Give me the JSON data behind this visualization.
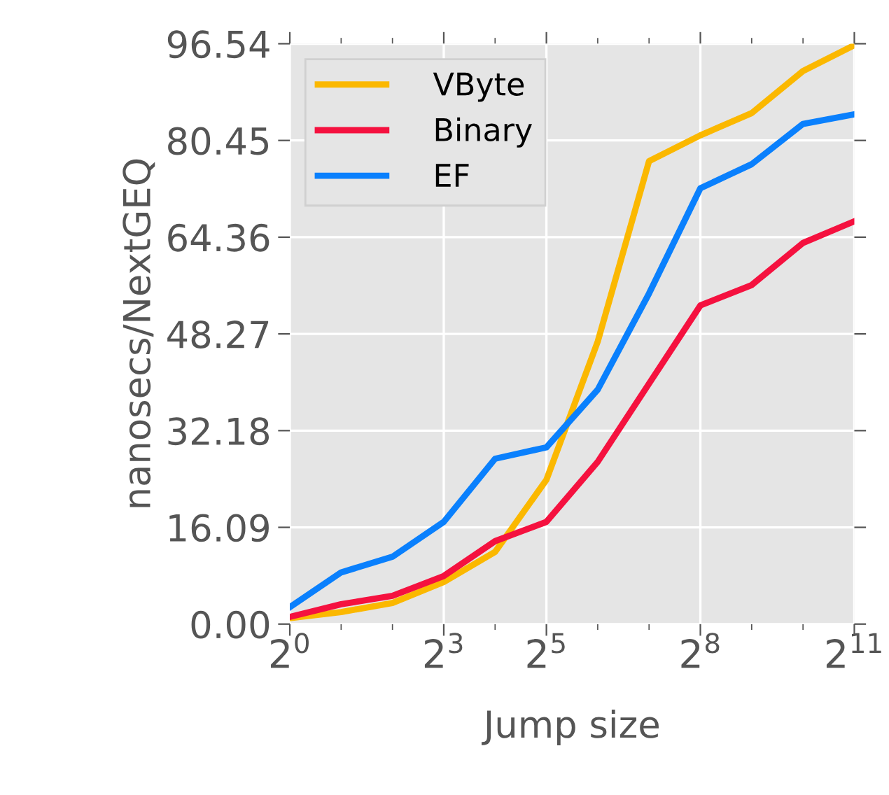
{
  "chart_data": {
    "type": "line",
    "xlabel": "Jump size",
    "ylabel": "nanosecs/NextGEQ",
    "x": [
      1,
      2,
      4,
      8,
      16,
      32,
      64,
      128,
      256,
      512,
      1024,
      2048
    ],
    "series": [
      {
        "name": "VByte",
        "color": "#fbb800",
        "values": [
          1.0,
          2.0,
          3.5,
          7.0,
          12.0,
          24.0,
          47.0,
          77.0,
          81.3,
          85.0,
          92.0,
          96.3
        ]
      },
      {
        "name": "Binary",
        "color": "#f5113f",
        "values": [
          1.2,
          3.3,
          4.7,
          8.0,
          13.8,
          17.0,
          27.0,
          40.0,
          53.0,
          56.4,
          63.4,
          67.0
        ]
      },
      {
        "name": "EF",
        "color": "#0a80fd",
        "values": [
          2.8,
          8.6,
          11.2,
          17.0,
          27.5,
          29.4,
          39.0,
          55.0,
          72.5,
          76.5,
          83.2,
          84.8
        ]
      }
    ],
    "log": "x",
    "xlim": [
      1,
      2048
    ],
    "ylim": [
      0,
      96.54
    ],
    "xticks": [
      {
        "value": 1,
        "label": "2$^{0}$"
      },
      {
        "value": 2,
        "label": null
      },
      {
        "value": 4,
        "label": null
      },
      {
        "value": 8,
        "label": "2$^{3}$"
      },
      {
        "value": 16,
        "label": null
      },
      {
        "value": 32,
        "label": "2$^{5}$"
      },
      {
        "value": 64,
        "label": null
      },
      {
        "value": 128,
        "label": null
      },
      {
        "value": 256,
        "label": "2$^{8}$"
      },
      {
        "value": 512,
        "label": null
      },
      {
        "value": 1024,
        "label": null
      },
      {
        "value": 2048,
        "label": "2$^{11}$"
      }
    ],
    "yticks": [
      {
        "value": 0,
        "label": "0.00"
      },
      16.09,
      32.18,
      48.27,
      64.36,
      80.45,
      96.54
    ],
    "grid": true,
    "legend": "top left",
    "line_style": "solid",
    "marker": "none"
  }
}
